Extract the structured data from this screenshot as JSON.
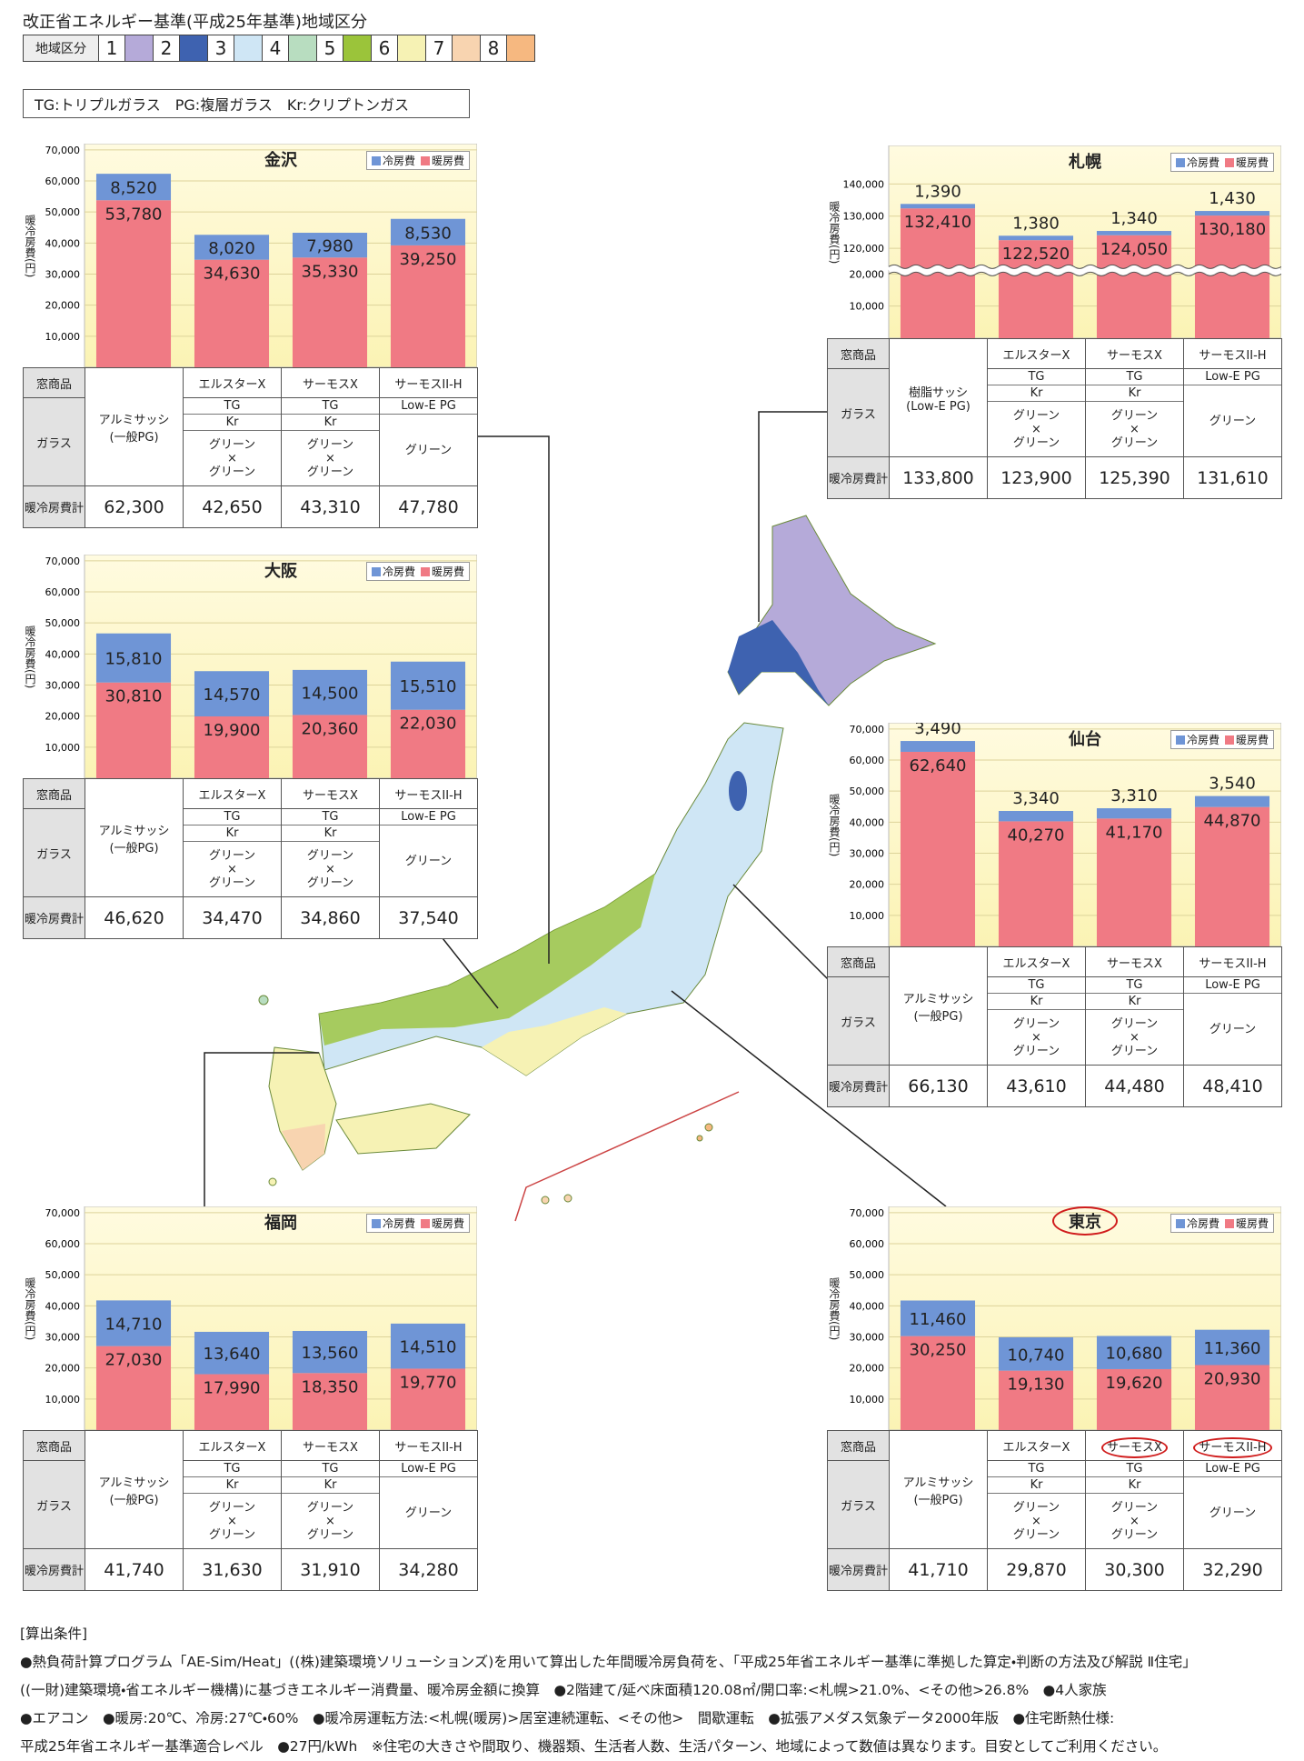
{
  "header": {
    "title": "改正省エネルギー基準(平成25年基準)地域区分",
    "zone_legend": {
      "label": "地域区分",
      "zones": [
        {
          "label": "1",
          "color": "#b5aad9"
        },
        {
          "label": "2",
          "color": "#3e62b0"
        },
        {
          "label": "3",
          "color": "#cfe6f5"
        },
        {
          "label": "4",
          "color": "#b8ddc0"
        },
        {
          "label": "5",
          "color": "#9bc43a"
        },
        {
          "label": "6",
          "color": "#f6f2b4"
        },
        {
          "label": "7",
          "color": "#f8d4b0"
        },
        {
          "label": "8",
          "color": "#f6b880"
        }
      ]
    },
    "note": "TG:トリプルガラス　PG:複層ガラス　Kr:クリプトンガス"
  },
  "chart_data": [
    {
      "type": "bar",
      "stacked": true,
      "title": "金沢",
      "y_label": "暖冷房費(円)",
      "categories": [
        "アルミサッシ(一般PG)",
        "エルスターX",
        "サーモスX",
        "サーモスII-H"
      ],
      "series": [
        {
          "name": "冷房費",
          "color": "#6f95d6",
          "values": [
            8520,
            8020,
            7980,
            8530
          ],
          "value_labels": [
            "8,520",
            "8,020",
            "7,980",
            "8,530"
          ]
        },
        {
          "name": "暖房費",
          "color": "#f07a84",
          "values": [
            53780,
            34630,
            35330,
            39250
          ],
          "value_labels": [
            "53,780",
            "34,630",
            "35,330",
            "39,250"
          ]
        }
      ],
      "ylim": [
        0,
        72000
      ],
      "yticks": [
        {
          "value": 10000,
          "label": "10,000"
        },
        {
          "value": 20000,
          "label": "20,000"
        },
        {
          "value": 30000,
          "label": "30,000"
        },
        {
          "value": 40000,
          "label": "40,000"
        },
        {
          "value": 50000,
          "label": "50,000"
        },
        {
          "value": 60000,
          "label": "60,000"
        },
        {
          "value": 70000,
          "label": "70,000"
        }
      ],
      "grid": true,
      "table": {
        "row_headers": [
          "窓商品",
          "ガラス",
          "暖冷房費計"
        ],
        "glass": [
          [
            [
              "TG"
            ],
            [
              "Kr"
            ],
            [
              "グリーン",
              "×",
              "グリーン"
            ]
          ],
          [
            [
              "TG"
            ],
            [
              "Kr"
            ],
            [
              "グリーン",
              "×",
              "グリーン"
            ]
          ],
          [
            [
              "Low-E PG"
            ],
            [
              "グリーン"
            ]
          ]
        ],
        "totals": [
          "62,300",
          "42,650",
          "43,310",
          "47,780"
        ]
      }
    },
    {
      "type": "bar",
      "stacked": true,
      "title": "大阪",
      "y_label": "暖冷房費(円)",
      "categories": [
        "アルミサッシ(一般PG)",
        "エルスターX",
        "サーモスX",
        "サーモスII-H"
      ],
      "series": [
        {
          "name": "冷房費",
          "color": "#6f95d6",
          "values": [
            15810,
            14570,
            14500,
            15510
          ],
          "value_labels": [
            "15,810",
            "14,570",
            "14,500",
            "15,510"
          ]
        },
        {
          "name": "暖房費",
          "color": "#f07a84",
          "values": [
            30810,
            19900,
            20360,
            22030
          ],
          "value_labels": [
            "30,810",
            "19,900",
            "20,360",
            "22,030"
          ]
        }
      ],
      "ylim": [
        0,
        72000
      ],
      "yticks": [
        {
          "value": 10000,
          "label": "10,000"
        },
        {
          "value": 20000,
          "label": "20,000"
        },
        {
          "value": 30000,
          "label": "30,000"
        },
        {
          "value": 40000,
          "label": "40,000"
        },
        {
          "value": 50000,
          "label": "50,000"
        },
        {
          "value": 60000,
          "label": "60,000"
        },
        {
          "value": 70000,
          "label": "70,000"
        }
      ],
      "grid": true,
      "table": {
        "row_headers": [
          "窓商品",
          "ガラス",
          "暖冷房費計"
        ],
        "glass": [
          [
            [
              "TG"
            ],
            [
              "Kr"
            ],
            [
              "グリーン",
              "×",
              "グリーン"
            ]
          ],
          [
            [
              "TG"
            ],
            [
              "Kr"
            ],
            [
              "グリーン",
              "×",
              "グリーン"
            ]
          ],
          [
            [
              "Low-E PG"
            ],
            [
              "グリーン"
            ]
          ]
        ],
        "totals": [
          "46,620",
          "34,470",
          "34,860",
          "37,540"
        ]
      }
    },
    {
      "type": "bar",
      "stacked": true,
      "title": "福岡",
      "y_label": "暖冷房費(円)",
      "categories": [
        "アルミサッシ(一般PG)",
        "エルスターX",
        "サーモスX",
        "サーモスII-H"
      ],
      "series": [
        {
          "name": "冷房費",
          "color": "#6f95d6",
          "values": [
            14710,
            13640,
            13560,
            14510
          ],
          "value_labels": [
            "14,710",
            "13,640",
            "13,560",
            "14,510"
          ]
        },
        {
          "name": "暖房費",
          "color": "#f07a84",
          "values": [
            27030,
            17990,
            18350,
            19770
          ],
          "value_labels": [
            "27,030",
            "17,990",
            "18,350",
            "19,770"
          ]
        }
      ],
      "ylim": [
        0,
        72000
      ],
      "yticks": [
        {
          "value": 10000,
          "label": "10,000"
        },
        {
          "value": 20000,
          "label": "20,000"
        },
        {
          "value": 30000,
          "label": "30,000"
        },
        {
          "value": 40000,
          "label": "40,000"
        },
        {
          "value": 50000,
          "label": "50,000"
        },
        {
          "value": 60000,
          "label": "60,000"
        },
        {
          "value": 70000,
          "label": "70,000"
        }
      ],
      "grid": true,
      "table": {
        "row_headers": [
          "窓商品",
          "ガラス",
          "暖冷房費計"
        ],
        "glass": [
          [
            [
              "TG"
            ],
            [
              "Kr"
            ],
            [
              "グリーン",
              "×",
              "グリーン"
            ]
          ],
          [
            [
              "TG"
            ],
            [
              "Kr"
            ],
            [
              "グリーン",
              "×",
              "グリーン"
            ]
          ],
          [
            [
              "Low-E PG"
            ],
            [
              "グリーン"
            ]
          ]
        ],
        "totals": [
          "41,740",
          "31,630",
          "31,910",
          "34,280"
        ]
      }
    },
    {
      "type": "bar",
      "stacked": true,
      "title": "札幌",
      "y_label": "暖冷房費(円)",
      "categories": [
        "樹脂サッシ(Low-E PG)",
        "エルスターX",
        "サーモスX",
        "サーモスII-H"
      ],
      "series": [
        {
          "name": "冷房費",
          "color": "#6f95d6",
          "values": [
            1390,
            1380,
            1340,
            1430
          ],
          "value_labels": [
            "1,390",
            "1,380",
            "1,340",
            "1,430"
          ]
        },
        {
          "name": "暖房費",
          "color": "#f07a84",
          "values": [
            132410,
            122520,
            124050,
            130180
          ],
          "value_labels": [
            "132,410",
            "122,520",
            "124,050",
            "130,180"
          ]
        }
      ],
      "ylim": [
        0,
        152000
      ],
      "axis_break": [
        20000,
        112000
      ],
      "yticks": [
        {
          "value": 10000,
          "label": "10,000"
        },
        {
          "value": 20000,
          "label": "20,000"
        },
        {
          "value": 120000,
          "label": "120,000"
        },
        {
          "value": 130000,
          "label": "130,000"
        },
        {
          "value": 140000,
          "label": "140,000"
        }
      ],
      "grid": true,
      "table": {
        "row_headers": [
          "窓商品",
          "ガラス",
          "暖冷房費計"
        ],
        "glass": [
          [
            [
              "TG"
            ],
            [
              "Kr"
            ],
            [
              "グリーン",
              "×",
              "グリーン"
            ]
          ],
          [
            [
              "TG"
            ],
            [
              "Kr"
            ],
            [
              "グリーン",
              "×",
              "グリーン"
            ]
          ],
          [
            [
              "Low-E PG"
            ],
            [
              "グリーン"
            ]
          ]
        ],
        "totals": [
          "133,800",
          "123,900",
          "125,390",
          "131,610"
        ]
      }
    },
    {
      "type": "bar",
      "stacked": true,
      "title": "仙台",
      "y_label": "暖冷房費(円)",
      "categories": [
        "アルミサッシ(一般PG)",
        "エルスターX",
        "サーモスX",
        "サーモスII-H"
      ],
      "series": [
        {
          "name": "冷房費",
          "color": "#6f95d6",
          "values": [
            3490,
            3340,
            3310,
            3540
          ],
          "value_labels": [
            "3,490",
            "3,340",
            "3,310",
            "3,540"
          ]
        },
        {
          "name": "暖房費",
          "color": "#f07a84",
          "values": [
            62640,
            40270,
            41170,
            44870
          ],
          "value_labels": [
            "62,640",
            "40,270",
            "41,170",
            "44,870"
          ]
        }
      ],
      "ylim": [
        0,
        72000
      ],
      "yticks": [
        {
          "value": 10000,
          "label": "10,000"
        },
        {
          "value": 20000,
          "label": "20,000"
        },
        {
          "value": 30000,
          "label": "30,000"
        },
        {
          "value": 40000,
          "label": "40,000"
        },
        {
          "value": 50000,
          "label": "50,000"
        },
        {
          "value": 60000,
          "label": "60,000"
        },
        {
          "value": 70000,
          "label": "70,000"
        }
      ],
      "grid": true,
      "table": {
        "row_headers": [
          "窓商品",
          "ガラス",
          "暖冷房費計"
        ],
        "glass": [
          [
            [
              "TG"
            ],
            [
              "Kr"
            ],
            [
              "グリーン",
              "×",
              "グリーン"
            ]
          ],
          [
            [
              "TG"
            ],
            [
              "Kr"
            ],
            [
              "グリーン",
              "×",
              "グリーン"
            ]
          ],
          [
            [
              "Low-E PG"
            ],
            [
              "グリーン"
            ]
          ]
        ],
        "totals": [
          "66,130",
          "43,610",
          "44,480",
          "48,410"
        ]
      }
    },
    {
      "type": "bar",
      "stacked": true,
      "title": "東京",
      "y_label": "暖冷房費(円)",
      "categories": [
        "アルミサッシ(一般PG)",
        "エルスターX",
        "サーモスX",
        "サーモスII-H"
      ],
      "series": [
        {
          "name": "冷房費",
          "color": "#6f95d6",
          "values": [
            11460,
            10740,
            10680,
            11360
          ],
          "value_labels": [
            "11,460",
            "10,740",
            "10,680",
            "11,360"
          ]
        },
        {
          "name": "暖房費",
          "color": "#f07a84",
          "values": [
            30250,
            19130,
            19620,
            20930
          ],
          "value_labels": [
            "30,250",
            "19,130",
            "19,620",
            "20,930"
          ]
        }
      ],
      "ylim": [
        0,
        72000
      ],
      "yticks": [
        {
          "value": 10000,
          "label": "10,000"
        },
        {
          "value": 20000,
          "label": "20,000"
        },
        {
          "value": 30000,
          "label": "30,000"
        },
        {
          "value": 40000,
          "label": "40,000"
        },
        {
          "value": 50000,
          "label": "50,000"
        },
        {
          "value": 60000,
          "label": "60,000"
        },
        {
          "value": 70000,
          "label": "70,000"
        }
      ],
      "grid": true,
      "table": {
        "row_headers": [
          "窓商品",
          "ガラス",
          "暖冷房費計"
        ],
        "glass": [
          [
            [
              "TG"
            ],
            [
              "Kr"
            ],
            [
              "グリーン",
              "×",
              "グリーン"
            ]
          ],
          [
            [
              "TG"
            ],
            [
              "Kr"
            ],
            [
              "グリーン",
              "×",
              "グリーン"
            ]
          ],
          [
            [
              "Low-E PG"
            ],
            [
              "グリーン"
            ]
          ]
        ],
        "totals": [
          "41,710",
          "29,870",
          "30,300",
          "32,290"
        ]
      }
    }
  ],
  "conditions": {
    "title": "[算出条件]",
    "lines": [
      "●熱負荷計算プログラム「AE-Sim/Heat」((株)建築環境ソリューションズ)を用いて算出した年間暖冷房負荷を、「平成25年省エネルギー基準に準拠した算定・判断の方法及び解説 Ⅱ住宅」",
      "((一財)建築環境・省エネルギー機構)に基づきエネルギー消費量、暖冷房金額に換算　●2階建て/延べ床面積120.08㎡/開口率:<札幌>21.0%、<その他>26.8%　●4人家族",
      "●エアコン　●暖房:20℃、冷房:27℃・60%　●暖冷房運転方法:<札幌(暖房)>居室連続運転、<その他>　間歇運転　●拡張アメダス気象データ2000年版　●住宅断熱仕様:",
      "平成25年省エネルギー基準適合レベル　●27円/kWh　※住宅の大きさや間取り、機器類、生活者人数、生活パターン、地域によって数値は異なります。目安としてご利用ください。"
    ]
  }
}
